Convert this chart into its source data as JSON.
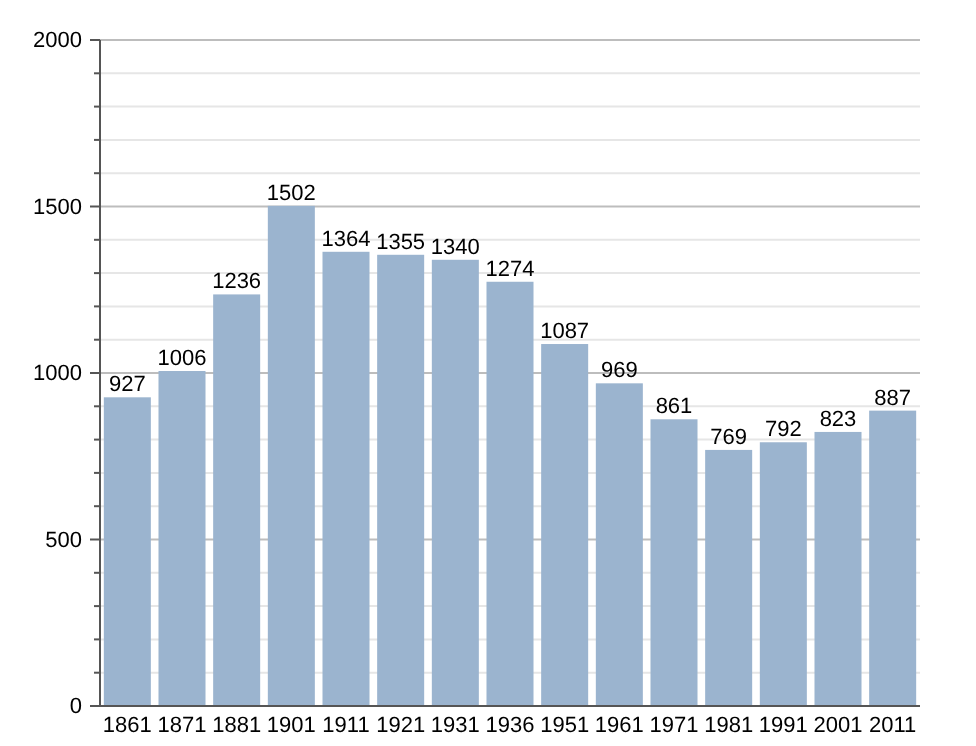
{
  "chart_data": {
    "type": "bar",
    "categories": [
      "1861",
      "1871",
      "1881",
      "1901",
      "1911",
      "1921",
      "1931",
      "1936",
      "1951",
      "1961",
      "1971",
      "1981",
      "1991",
      "2001",
      "2011"
    ],
    "values": [
      927,
      1006,
      1236,
      1502,
      1364,
      1355,
      1340,
      1274,
      1087,
      969,
      861,
      769,
      792,
      823,
      887
    ],
    "color": "#9bb4cf",
    "ylim": [
      0,
      2000
    ],
    "yticks": [
      0,
      {
        "value": 100,
        "label": null
      },
      {
        "value": 200,
        "label": null
      },
      {
        "value": 300,
        "label": null
      },
      {
        "value": 400,
        "label": null
      },
      500,
      {
        "value": 600,
        "label": null
      },
      {
        "value": 700,
        "label": null
      },
      {
        "value": 800,
        "label": null
      },
      {
        "value": 900,
        "label": null
      },
      1000,
      {
        "value": 1100,
        "label": null
      },
      {
        "value": 1200,
        "label": null
      },
      {
        "value": 1300,
        "label": null
      },
      {
        "value": 1400,
        "label": null
      },
      1500,
      {
        "value": 1600,
        "label": null
      },
      {
        "value": 1700,
        "label": null
      },
      {
        "value": 1800,
        "label": null
      },
      {
        "value": 1900,
        "label": null
      },
      2000
    ],
    "grid": "y",
    "data_labels": true
  }
}
